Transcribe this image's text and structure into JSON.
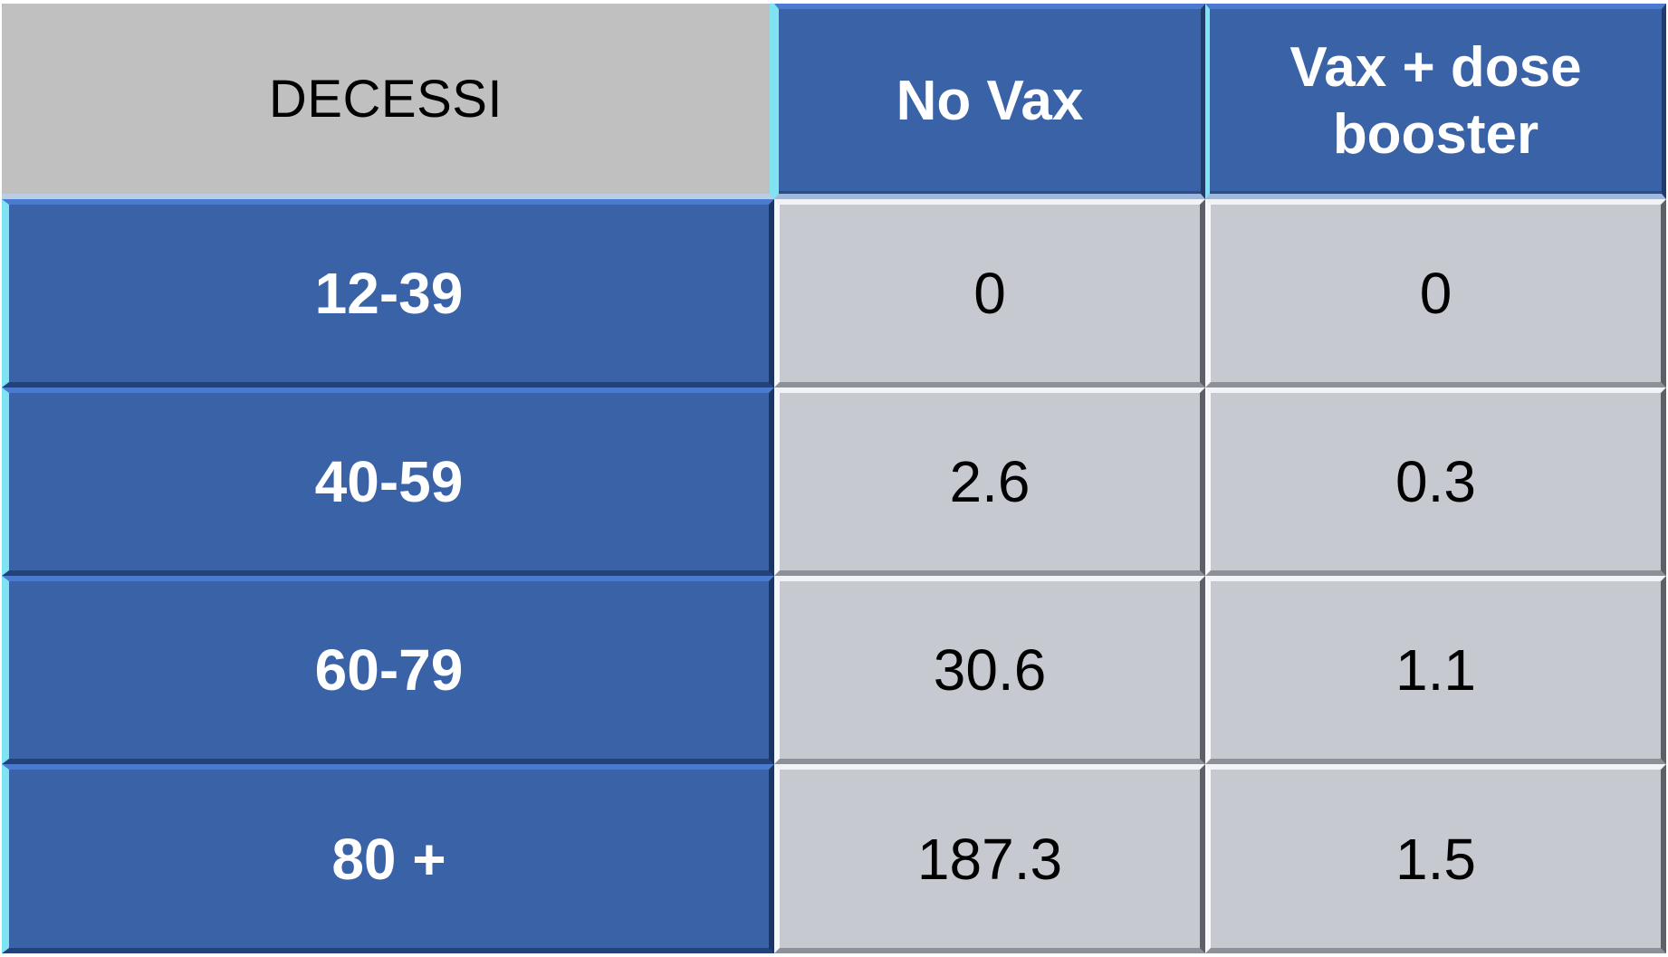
{
  "table": {
    "corner_label": "DECESSI",
    "columns": [
      "No Vax",
      "Vax + dose booster"
    ],
    "rows": [
      {
        "label": "12-39",
        "values": [
          "0",
          "0"
        ]
      },
      {
        "label": "40-59",
        "values": [
          "2.6",
          "0.3"
        ]
      },
      {
        "label": "60-79",
        "values": [
          "30.6",
          "1.1"
        ]
      },
      {
        "label": "80 +",
        "values": [
          "187.3",
          "1.5"
        ]
      }
    ]
  },
  "colors": {
    "header_blue": "#3a62a7",
    "corner_grey": "#c0c0c0",
    "cell_grey": "#c7c9d1",
    "accent_cyan": "#7fe3f2"
  }
}
